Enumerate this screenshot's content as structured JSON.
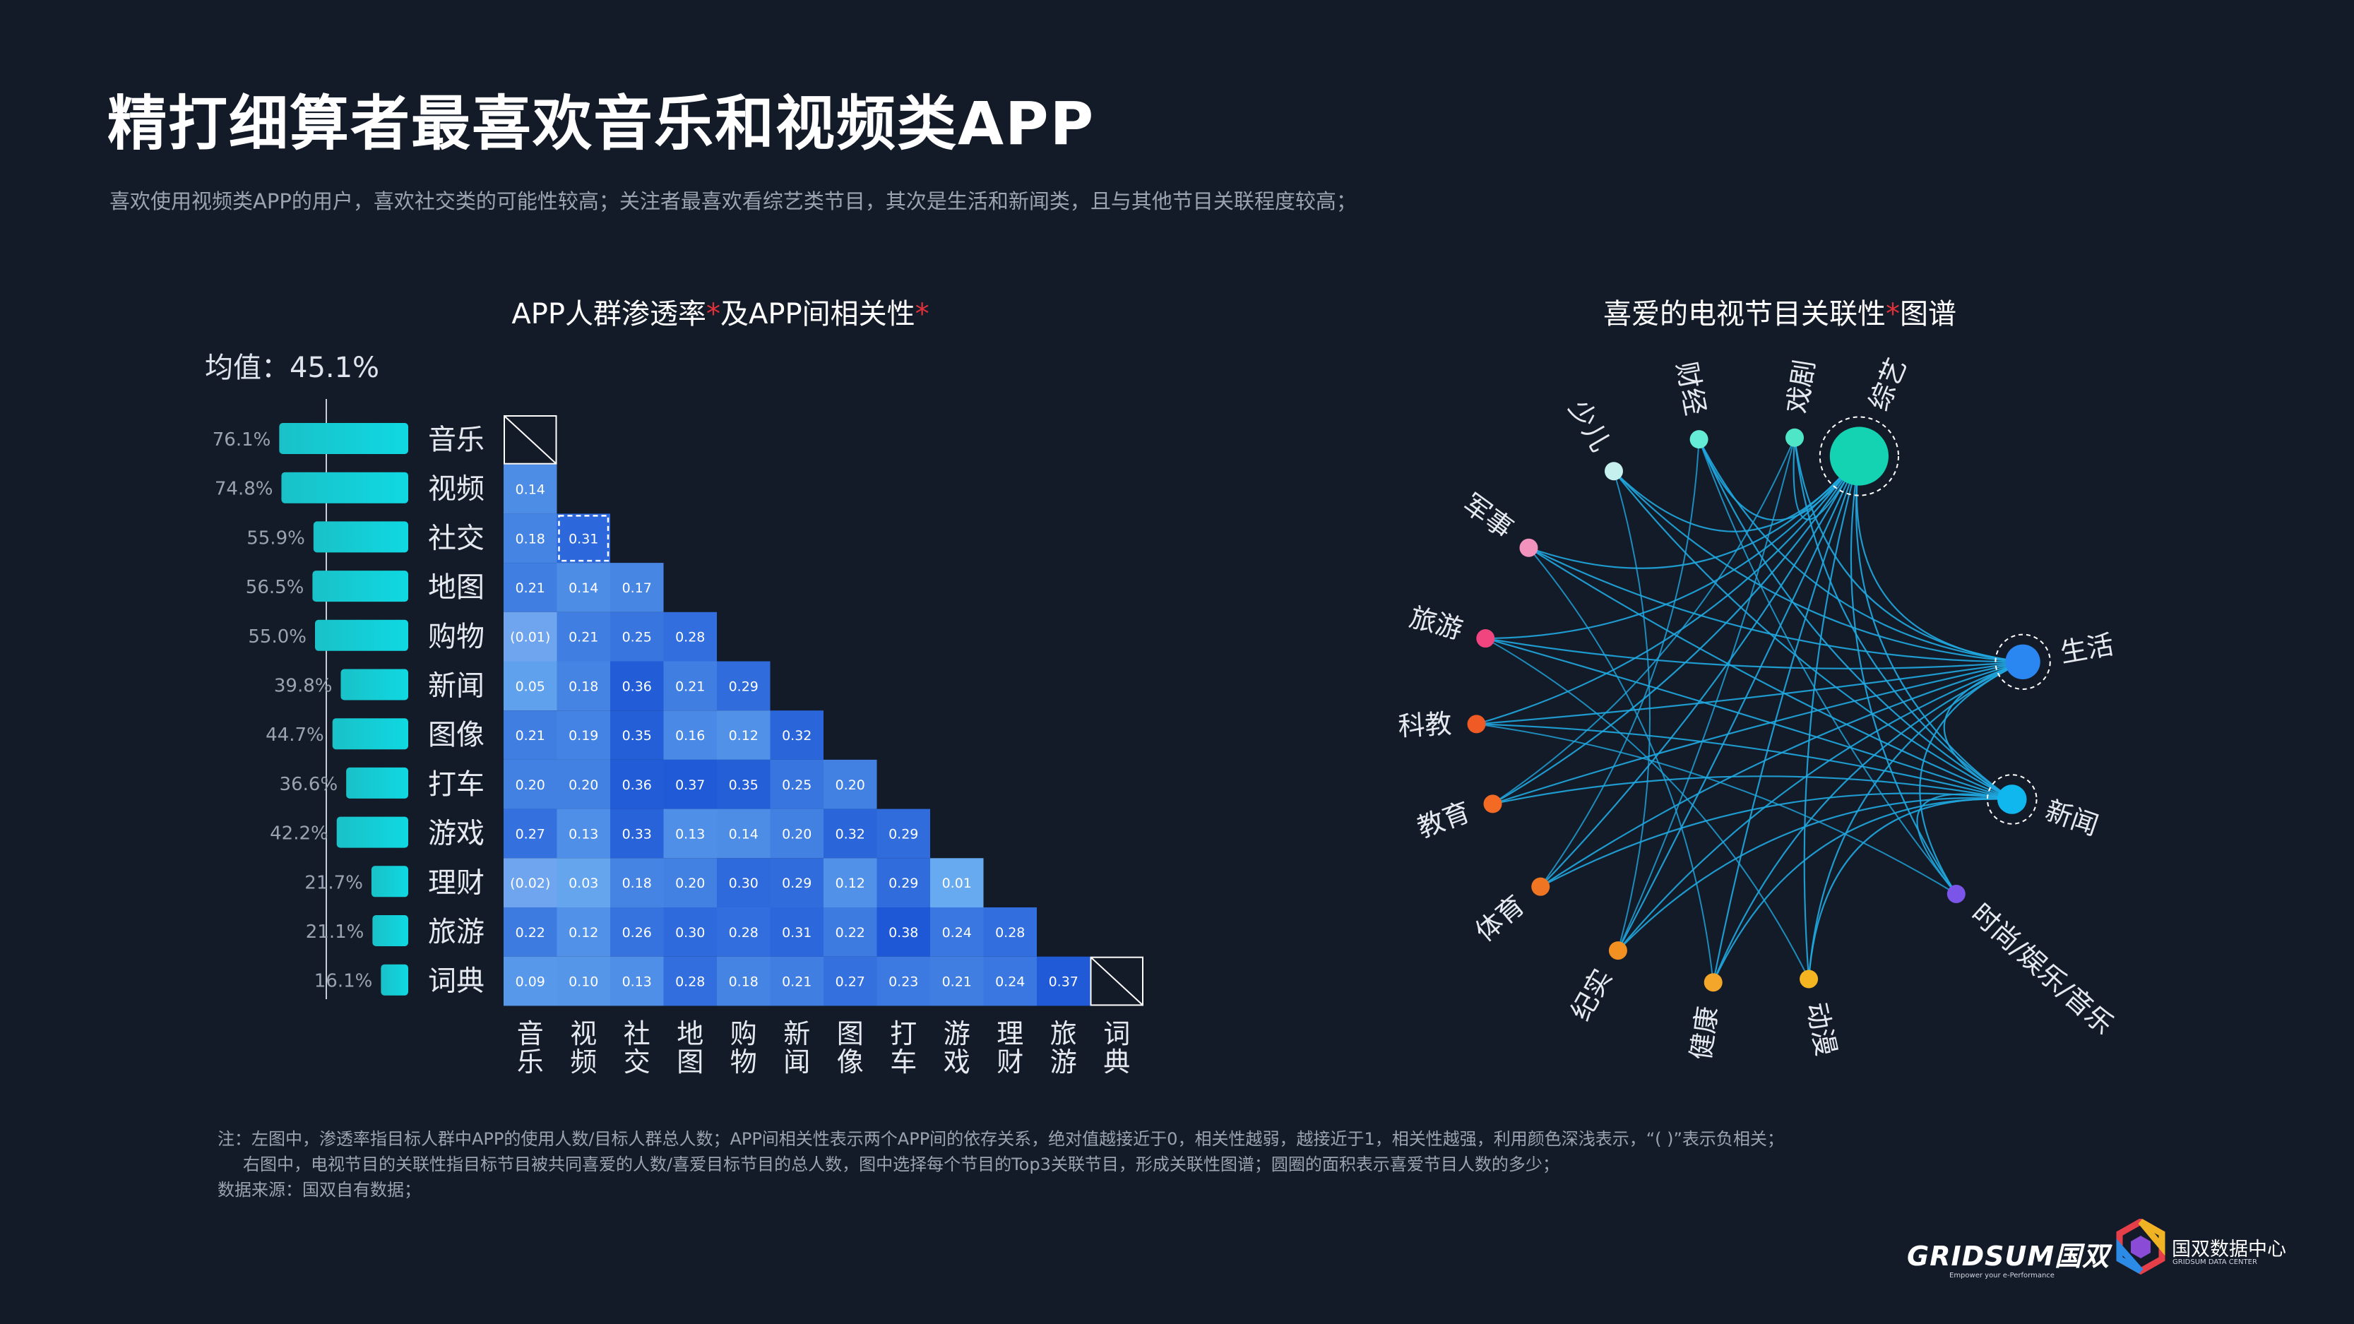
{
  "title": "精打细算者最喜欢音乐和视频类APP",
  "subtitle": "喜欢使用视频类APP的用户，喜欢社交类的可能性较高；关注者最喜欢看综艺类节目，其次是生活和新闻类，且与其他节目关联程度较高；",
  "left_heading": {
    "a": "APP人群渗透率",
    "b": "及APP间相关性",
    "star": "*"
  },
  "right_heading": {
    "a": "喜爱的电视节目关联性",
    "b": "图谱",
    "star": "*"
  },
  "mean_label": "均值：45.1%",
  "notes": [
    "注：左图中，渗透率指目标人群中APP的使用人数/目标人群总人数；APP间相关性表示两个APP间的依存关系，绝对值越接近于0，相关性越弱，越接近于1，相关性越强，利用颜色深浅表示，“( )”表示负相关；",
    "右图中，电视节目的关联性指目标节目被共同喜爱的人数/喜爱目标节目的总人数，图中选择每个节目的Top3关联节目，形成关联性图谱；圆圈的面积表示喜爱节目人数的多少；",
    "数据来源：国双自有数据；"
  ],
  "logo": {
    "gridsum": "GRIDSUM国双",
    "gridsum_tag": "Empower your e-Performance",
    "center": "国双数据中心",
    "center_sub": "GRIDSUM DATA CENTER"
  },
  "colors": {
    "bg": "#141b28",
    "bar_start": "#19c3c9",
    "bar_end": "#11d6df",
    "edge": "#1fa8e0"
  },
  "chart_data": [
    {
      "type": "bar",
      "title": "APP人群渗透率",
      "categories": [
        "音乐",
        "视频",
        "社交",
        "地图",
        "购物",
        "新闻",
        "图像",
        "打车",
        "游戏",
        "理财",
        "旅游",
        "词典"
      ],
      "values": [
        76.1,
        74.8,
        55.9,
        56.5,
        55.0,
        39.8,
        44.7,
        36.6,
        42.2,
        21.7,
        21.1,
        16.1
      ],
      "value_labels": [
        "76.1%",
        "74.8%",
        "55.9%",
        "56.5%",
        "55.0%",
        "39.8%",
        "44.7%",
        "36.6%",
        "42.2%",
        "21.7%",
        "21.1%",
        "16.1%"
      ],
      "mean": 45.1,
      "unit": "%"
    },
    {
      "type": "heatmap",
      "title": "APP间相关性",
      "rows": [
        "音乐",
        "视频",
        "社交",
        "地图",
        "购物",
        "新闻",
        "图像",
        "打车",
        "游戏",
        "理财",
        "旅游",
        "词典"
      ],
      "columns": [
        "音乐",
        "视频",
        "社交",
        "地图",
        "购物",
        "新闻",
        "图像",
        "打车",
        "游戏",
        "理财",
        "旅游",
        "词典"
      ],
      "matrix": [
        [],
        [
          "0.14"
        ],
        [
          "0.18",
          "0.31"
        ],
        [
          "0.21",
          "0.14",
          "0.17"
        ],
        [
          "(0.01)",
          "0.21",
          "0.25",
          "0.28"
        ],
        [
          "0.05",
          "0.18",
          "0.36",
          "0.21",
          "0.29"
        ],
        [
          "0.21",
          "0.19",
          "0.35",
          "0.16",
          "0.12",
          "0.32"
        ],
        [
          "0.20",
          "0.20",
          "0.36",
          "0.37",
          "0.35",
          "0.25",
          "0.20"
        ],
        [
          "0.27",
          "0.13",
          "0.33",
          "0.13",
          "0.14",
          "0.20",
          "0.32",
          "0.29"
        ],
        [
          "(0.02)",
          "0.03",
          "0.18",
          "0.20",
          "0.30",
          "0.29",
          "0.12",
          "0.29",
          "0.01"
        ],
        [
          "0.22",
          "0.12",
          "0.26",
          "0.30",
          "0.28",
          "0.31",
          "0.22",
          "0.38",
          "0.24",
          "0.28"
        ],
        [
          "0.09",
          "0.10",
          "0.13",
          "0.28",
          "0.18",
          "0.21",
          "0.27",
          "0.23",
          "0.21",
          "0.24",
          "0.37"
        ]
      ],
      "highlight": {
        "row": 2,
        "col": 1
      }
    },
    {
      "type": "network",
      "title": "喜爱的电视节目关联性图谱",
      "nodes": [
        {
          "name": "综艺",
          "color": "#14d3b3",
          "size": 3.2,
          "ring": true
        },
        {
          "name": "生活",
          "color": "#2a86f0",
          "size": 1.9,
          "ring": true
        },
        {
          "name": "新闻",
          "color": "#10b6ee",
          "size": 1.6,
          "ring": true
        },
        {
          "name": "时尚/娱乐/音乐",
          "color": "#7a55e8",
          "size": 1,
          "ring": false
        },
        {
          "name": "动漫",
          "color": "#f4b521",
          "size": 1,
          "ring": false
        },
        {
          "name": "健康",
          "color": "#f4a62a",
          "size": 1,
          "ring": false
        },
        {
          "name": "纪实",
          "color": "#f29122",
          "size": 1,
          "ring": false
        },
        {
          "name": "体育",
          "color": "#f07523",
          "size": 1,
          "ring": false
        },
        {
          "name": "教育",
          "color": "#f26a24",
          "size": 1,
          "ring": false
        },
        {
          "name": "科教",
          "color": "#f05a24",
          "size": 1,
          "ring": false
        },
        {
          "name": "旅游",
          "color": "#f0457e",
          "size": 1,
          "ring": false
        },
        {
          "name": "军事",
          "color": "#f292bd",
          "size": 1,
          "ring": false
        },
        {
          "name": "少儿",
          "color": "#c6f0ee",
          "size": 1,
          "ring": false
        },
        {
          "name": "财经",
          "color": "#64ecd6",
          "size": 1,
          "ring": false
        },
        {
          "name": "戏剧",
          "color": "#4fe6c8",
          "size": 1,
          "ring": false
        }
      ]
    }
  ]
}
